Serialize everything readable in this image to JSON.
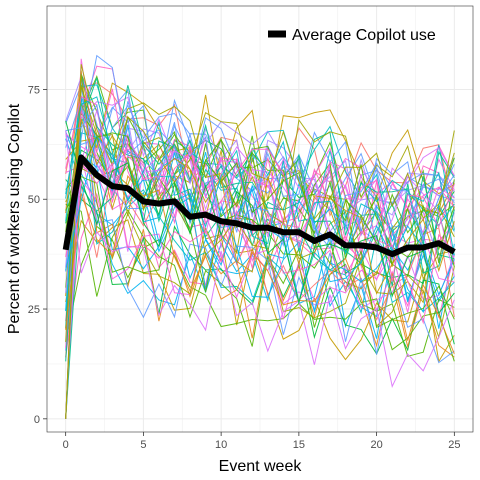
{
  "chart_data": {
    "type": "line",
    "xlabel": "Event week",
    "ylabel": "Percent of workers using Copilot",
    "xlim": [
      -1.2,
      26.2
    ],
    "ylim": [
      -3,
      94
    ],
    "x_ticks": [
      0,
      5,
      10,
      15,
      20,
      25
    ],
    "y_ticks": [
      0,
      25,
      50,
      75
    ],
    "grid": true,
    "legend_position": "top-right",
    "average_series": {
      "name": "Average Copilot use",
      "color": "#000000",
      "x": [
        0,
        1,
        2,
        3,
        4,
        5,
        6,
        7,
        8,
        9,
        10,
        11,
        12,
        13,
        14,
        15,
        16,
        17,
        18,
        19,
        20,
        21,
        22,
        23,
        24,
        25
      ],
      "values": [
        38.5,
        59.5,
        55.5,
        53,
        52.5,
        49.5,
        49,
        49.5,
        46,
        46.5,
        45,
        44.5,
        43.5,
        43.5,
        42.5,
        42.5,
        40.5,
        42,
        39.5,
        39.5,
        39,
        37.5,
        39,
        39,
        40,
        38
      ]
    },
    "individual_series_count": 60,
    "individual_series_palette": [
      "#F8766D",
      "#E7861B",
      "#C49A00",
      "#A3A500",
      "#53B400",
      "#00BA38",
      "#00C08B",
      "#00BFC4",
      "#00B4F0",
      "#619CFF",
      "#A58AFF",
      "#DB72FB",
      "#F564E3",
      "#FF61C3"
    ]
  }
}
